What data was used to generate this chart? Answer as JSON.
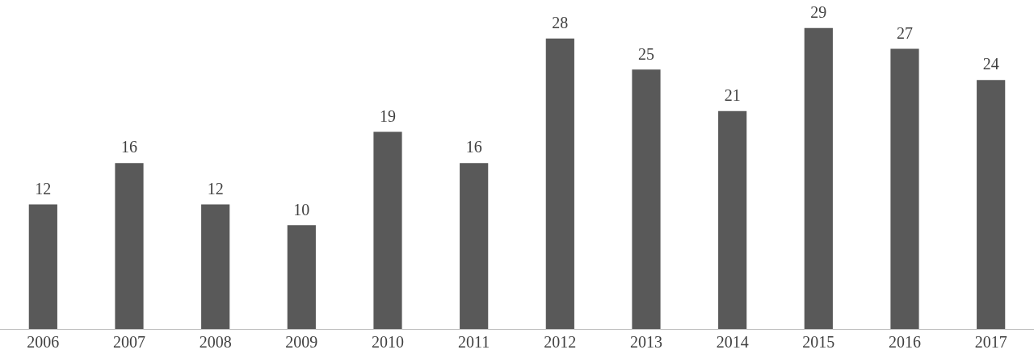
{
  "chart_data": {
    "type": "bar",
    "categories": [
      "2006",
      "2007",
      "2008",
      "2009",
      "2010",
      "2011",
      "2012",
      "2013",
      "2014",
      "2015",
      "2016",
      "2017"
    ],
    "values": [
      12,
      16,
      12,
      10,
      19,
      16,
      28,
      25,
      21,
      29,
      27,
      24
    ],
    "color": "#595959",
    "data_labels": true
  }
}
